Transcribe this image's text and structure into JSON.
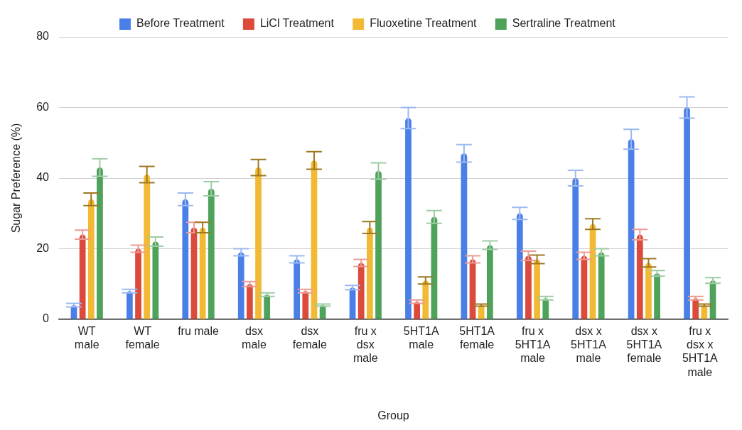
{
  "chart_data": {
    "type": "bar",
    "xlabel": "Group",
    "ylabel": "Sugar Preference (%)",
    "categories": [
      "WT\nmale",
      "WT\nfemale",
      "fru male",
      "dsx\nmale",
      "dsx\nfemale",
      "fru x\ndsx\nmale",
      "5HT1A\nmale",
      "5HT1A\nfemale",
      "fru x\n5HT1A\nmale",
      "dsx x\n5HT1A\nmale",
      "dsx x\n5HT1A\nfemale",
      "fru x\ndsx x\n5HT1A\nmale"
    ],
    "series": [
      {
        "name": "Before Treatment",
        "color": "#4a7fe8",
        "values": [
          4,
          8,
          34,
          19,
          17,
          9,
          57,
          47,
          30,
          40,
          51,
          60
        ],
        "errors": [
          0.5,
          0.5,
          1.8,
          1,
          1,
          0.6,
          3,
          2.5,
          1.7,
          2.2,
          2.8,
          3
        ]
      },
      {
        "name": "LiCl Treatment",
        "color": "#dc4a3c",
        "values": [
          24,
          20,
          26,
          10,
          8,
          16,
          5,
          17,
          18,
          18,
          24,
          6
        ],
        "errors": [
          1.3,
          1,
          1.5,
          0.7,
          0.5,
          1,
          0.5,
          1,
          1.3,
          1,
          1.5,
          0.5
        ]
      },
      {
        "name": "Fluoxetine Treatment",
        "color": "#f2b935",
        "values": [
          34,
          41,
          26,
          43,
          45,
          26,
          11,
          4,
          17,
          27,
          16,
          4
        ],
        "errors": [
          1.8,
          2.3,
          1.5,
          2.3,
          2.5,
          1.7,
          1,
          0.3,
          1.2,
          1.5,
          1.2,
          0.3
        ]
      },
      {
        "name": "Sertraline Treatment",
        "color": "#4ea25a",
        "values": [
          43,
          22,
          37,
          7,
          4,
          42,
          29,
          21,
          6,
          19,
          13,
          11
        ],
        "errors": [
          2.5,
          1.3,
          2,
          0.5,
          0.3,
          2.3,
          1.8,
          1.2,
          0.5,
          1,
          0.8,
          0.8
        ]
      }
    ],
    "ylim": [
      0,
      80
    ],
    "yticks": [
      0,
      20,
      40,
      60,
      80
    ],
    "grid": "y",
    "legend": "top"
  }
}
